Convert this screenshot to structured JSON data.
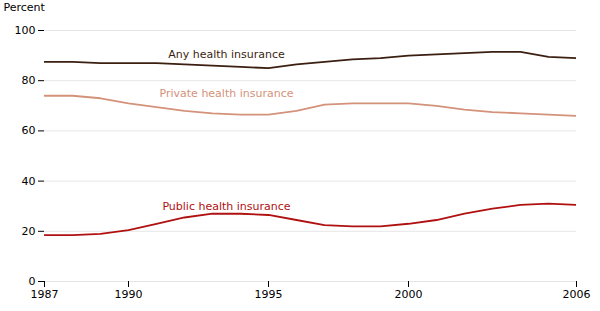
{
  "chart_data": {
    "type": "line",
    "x": [
      1987,
      1988,
      1989,
      1990,
      1991,
      1992,
      1993,
      1994,
      1995,
      1996,
      1997,
      1998,
      1999,
      2000,
      2001,
      2002,
      2003,
      2004,
      2005,
      2006
    ],
    "series": [
      {
        "name": "Any health insurance",
        "color": "#3b1f10",
        "values": [
          87.5,
          87.5,
          87.0,
          87.0,
          87.0,
          86.5,
          86.0,
          85.5,
          85.0,
          86.5,
          87.5,
          88.5,
          89.0,
          90.0,
          90.5,
          91.0,
          91.5,
          91.5,
          89.5,
          89.0
        ]
      },
      {
        "name": "Private health insurance",
        "color": "#d4927a",
        "values": [
          74.0,
          74.0,
          73.0,
          71.0,
          69.5,
          68.0,
          67.0,
          66.5,
          66.5,
          68.0,
          70.5,
          71.0,
          71.0,
          71.0,
          70.0,
          68.5,
          67.5,
          67.0,
          66.5,
          66.0
        ]
      },
      {
        "name": "Public health insurance",
        "color": "#b01010",
        "values": [
          18.5,
          18.5,
          19.0,
          20.5,
          23.0,
          25.5,
          27.0,
          27.0,
          26.5,
          24.5,
          22.5,
          22.0,
          22.0,
          23.0,
          24.5,
          27.0,
          29.0,
          30.5,
          31.0,
          30.5
        ]
      }
    ],
    "ylabel": "Percent",
    "xlim": [
      1987,
      2006
    ],
    "xticks": [
      1987,
      1990,
      1995,
      2000,
      2006
    ],
    "ylim": [
      0,
      100
    ],
    "yticks": [
      0,
      20,
      40,
      60,
      80,
      100
    ],
    "grid": true,
    "annotations": [
      {
        "text": "Any health insurance",
        "x": 1993.5,
        "y": 89.0,
        "color": "#3b1f10"
      },
      {
        "text": "Private health insurance",
        "x": 1993.5,
        "y": 73.5,
        "color": "#d4927a"
      },
      {
        "text": "Public health insurance",
        "x": 1993.5,
        "y": 28.5,
        "color": "#b01010"
      }
    ]
  }
}
